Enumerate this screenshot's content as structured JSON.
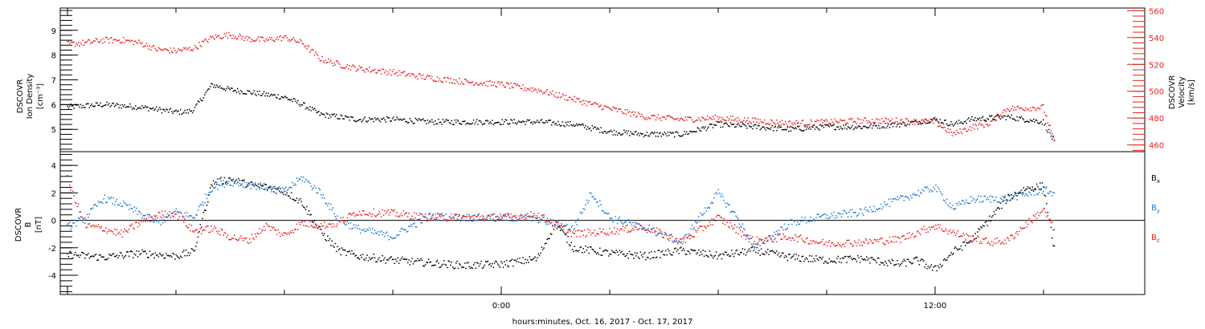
{
  "chart_data": [
    {
      "type": "scatter",
      "panel": "top",
      "ylabel_left": [
        "DSCOVR",
        "Ion Density",
        "[cm⁻³]"
      ],
      "ylabel_right": [
        "DSCOVR",
        "Velocity",
        "[km/s]"
      ],
      "left_ticks": [
        "5",
        "6",
        "7",
        "8",
        "9"
      ],
      "right_ticks": [
        "460",
        "480",
        "500",
        "520",
        "540",
        "560"
      ],
      "ylim_left": [
        4.1,
        9.9
      ],
      "ylim_right": [
        455,
        562
      ],
      "series": [
        {
          "axis": "left",
          "color": "#000000",
          "x_hours": [
            -12.0,
            -11.0,
            -10.0,
            -9.5,
            -9.0,
            -8.7,
            -8.5,
            -8.0,
            -7.5,
            -7.0,
            -6.5,
            -6.0,
            -5.5,
            -5.0,
            -4.5,
            -4.0,
            -3.0,
            -2.0,
            -1.0,
            0.0,
            1.0,
            2.0,
            3.0,
            4.0,
            5.0,
            6.0,
            7.0,
            8.0,
            9.0,
            10.0,
            11.0,
            11.5,
            12.0,
            12.5,
            13.0,
            14.0,
            15.0,
            15.3
          ],
          "values": [
            5.9,
            6.0,
            5.9,
            5.8,
            5.7,
            5.7,
            5.8,
            6.8,
            6.6,
            6.5,
            6.4,
            6.3,
            6.0,
            5.6,
            5.5,
            5.4,
            5.4,
            5.3,
            5.3,
            5.3,
            5.3,
            5.2,
            4.9,
            4.8,
            4.8,
            5.2,
            5.1,
            5.0,
            5.1,
            5.1,
            5.2,
            5.3,
            5.4,
            5.2,
            5.4,
            5.5,
            5.3,
            4.5
          ]
        },
        {
          "axis": "right",
          "color": "#e8211b",
          "x_hours": [
            -12.0,
            -11.5,
            -11.0,
            -10.5,
            -10.0,
            -9.5,
            -9.0,
            -8.5,
            -8.0,
            -7.5,
            -7.0,
            -6.5,
            -6.0,
            -5.5,
            -5.0,
            -4.5,
            -4.0,
            -3.0,
            -2.0,
            -1.0,
            0.0,
            1.0,
            2.0,
            3.0,
            4.0,
            5.0,
            6.0,
            7.0,
            8.0,
            9.0,
            10.0,
            11.0,
            12.0,
            12.5,
            13.0,
            13.5,
            14.0,
            15.0,
            15.3
          ],
          "values": [
            535,
            536,
            538,
            538,
            536,
            531,
            530,
            532,
            540,
            542,
            539,
            538,
            540,
            536,
            524,
            520,
            517,
            514,
            510,
            507,
            505,
            501,
            494,
            487,
            481,
            479,
            480,
            478,
            476,
            477,
            478,
            478,
            477,
            468,
            473,
            476,
            487,
            488,
            462
          ]
        }
      ]
    },
    {
      "type": "scatter",
      "panel": "bottom",
      "ylabel_left": [
        "DSCOVR",
        "B",
        "[nT]"
      ],
      "left_ticks": [
        "-4",
        "-2",
        "0",
        "2",
        "4"
      ],
      "ylim": [
        -5.4,
        5.0
      ],
      "legend": [
        "B",
        "B",
        "B"
      ],
      "legend_subscripts": [
        "x",
        "y",
        "z"
      ],
      "legend_placement": "right",
      "series": [
        {
          "name": "Bx",
          "color": "#000000",
          "x_hours": [
            -12.0,
            -11.0,
            -10.0,
            -9.0,
            -8.5,
            -8.0,
            -7.5,
            -7.0,
            -6.5,
            -6.0,
            -5.5,
            -5.0,
            -4.5,
            -4.0,
            -3.0,
            -2.0,
            -1.0,
            0.0,
            1.0,
            1.5,
            2.0,
            3.0,
            4.0,
            5.0,
            6.0,
            7.0,
            8.0,
            9.0,
            10.0,
            11.0,
            11.5,
            12.0,
            12.5,
            13.0,
            14.0,
            14.5,
            15.0,
            15.3
          ],
          "values": [
            -2.5,
            -2.7,
            -2.4,
            -2.6,
            -2.3,
            2.7,
            3.0,
            2.6,
            2.4,
            2.1,
            1.3,
            -0.8,
            -2.2,
            -2.6,
            -2.9,
            -3.1,
            -3.3,
            -3.2,
            -2.8,
            -0.2,
            -2.0,
            -2.4,
            -2.6,
            -2.2,
            -2.6,
            -2.2,
            -2.7,
            -2.9,
            -2.8,
            -3.2,
            -2.9,
            -3.6,
            -2.3,
            -1.5,
            1.6,
            2.3,
            2.5,
            -2.1
          ]
        },
        {
          "name": "By",
          "color": "#1a78d6",
          "x_hours": [
            -12.0,
            -11.5,
            -11.0,
            -10.5,
            -10.0,
            -9.5,
            -9.0,
            -8.5,
            -8.0,
            -7.5,
            -7.0,
            -6.5,
            -6.0,
            -5.5,
            -5.0,
            -4.5,
            -4.0,
            -3.0,
            -2.0,
            -1.0,
            0.0,
            1.0,
            2.0,
            2.5,
            3.0,
            4.0,
            5.0,
            6.0,
            6.5,
            7.0,
            8.0,
            9.0,
            10.0,
            11.0,
            12.0,
            12.5,
            13.0,
            14.0,
            15.0,
            15.3
          ],
          "values": [
            -0.5,
            0.2,
            1.6,
            1.2,
            0.5,
            -0.2,
            0.6,
            0.2,
            2.4,
            2.8,
            2.6,
            2.4,
            2.1,
            3.1,
            2.0,
            0.1,
            -0.6,
            -1.2,
            0.3,
            0.2,
            0.2,
            0.1,
            -0.6,
            2.0,
            0.2,
            -0.6,
            -1.6,
            2.0,
            0.3,
            -2.0,
            -0.2,
            0.3,
            0.6,
            1.5,
            2.4,
            0.9,
            1.5,
            1.6,
            2.2,
            2.0
          ]
        },
        {
          "name": "Bz",
          "color": "#e8211b",
          "x_hours": [
            -12.0,
            -11.5,
            -11.0,
            -10.5,
            -10.0,
            -9.5,
            -9.0,
            -8.5,
            -8.0,
            -7.5,
            -7.0,
            -6.5,
            -6.0,
            -5.5,
            -5.0,
            -4.5,
            -4.0,
            -3.0,
            -2.0,
            -1.0,
            0.0,
            1.0,
            2.0,
            3.0,
            4.0,
            5.0,
            6.0,
            7.0,
            8.0,
            9.0,
            10.0,
            11.0,
            12.0,
            12.5,
            13.0,
            13.5,
            14.0,
            15.0,
            15.3
          ],
          "values": [
            3.0,
            -0.4,
            -0.6,
            -1.0,
            -0.2,
            0.4,
            0.5,
            -0.8,
            -0.6,
            -1.2,
            -1.5,
            -0.4,
            -1.1,
            -0.2,
            -0.4,
            -0.2,
            0.6,
            0.5,
            0.2,
            0.2,
            0.2,
            0.4,
            -1.0,
            -0.8,
            -0.5,
            -1.6,
            0.2,
            -1.5,
            -1.2,
            -1.7,
            -1.6,
            -1.4,
            -0.4,
            -0.9,
            -1.3,
            -1.6,
            -1.5,
            0.8,
            -0.7
          ]
        }
      ]
    }
  ],
  "x_axis": {
    "tick_labels": [
      {
        "label": "0:00",
        "hour": 0
      },
      {
        "label": "12:00",
        "hour": 12
      }
    ],
    "xlim_hours": [
      -12.2,
      17.8
    ],
    "xlabel": "hours:minutes, Oct. 16, 2017 - Oct. 17, 2017"
  }
}
